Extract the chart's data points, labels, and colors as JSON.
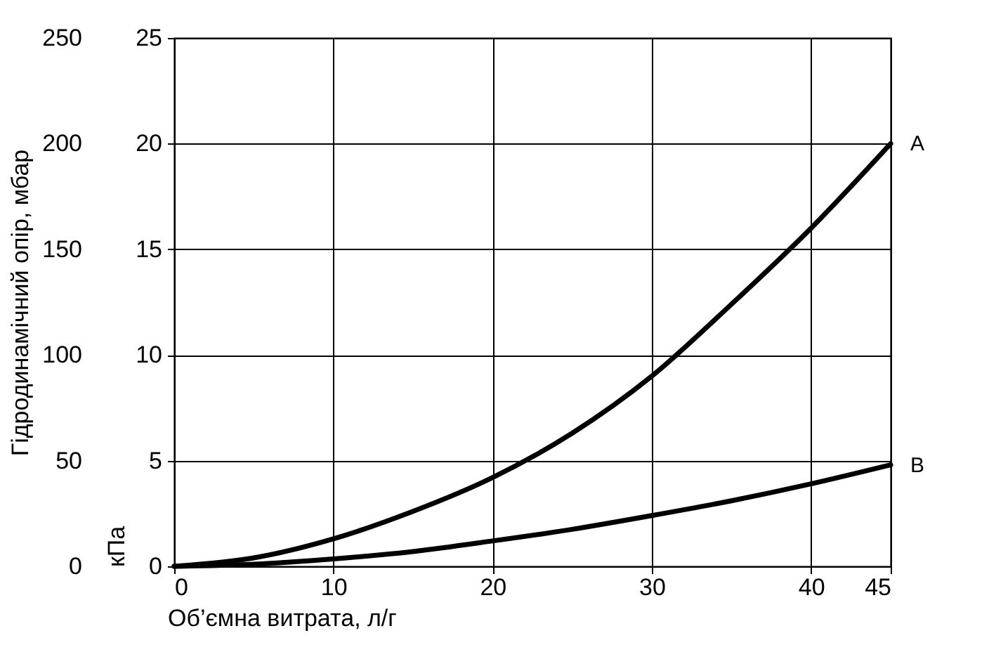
{
  "chart_data": {
    "type": "line",
    "xlabel": "Об’ємна витрата, л/г",
    "ylabel": "кПа",
    "y2label": "Гідродинамічний опір, мбар",
    "x": [
      0,
      5,
      10,
      15,
      20,
      25,
      30,
      35,
      40,
      45
    ],
    "series": [
      {
        "name": "A",
        "color": "#000000",
        "values": [
          0,
          0.4,
          1.3,
          2.6,
          4.2,
          6.3,
          9,
          12.4,
          16,
          20
        ]
      },
      {
        "name": "B",
        "color": "#000000",
        "values": [
          0,
          0.1,
          0.35,
          0.7,
          1.2,
          1.75,
          2.4,
          3.1,
          3.9,
          4.8
        ]
      }
    ],
    "xlim": [
      0,
      45
    ],
    "xticks": [
      0,
      10,
      20,
      30,
      40,
      45
    ],
    "ylim": [
      0,
      25
    ],
    "yticks": [
      0,
      5,
      10,
      15,
      20,
      25
    ],
    "y2lim": [
      0,
      250
    ],
    "y2ticks": [
      0,
      50,
      100,
      150,
      200,
      250
    ],
    "grid": true,
    "marker": "none",
    "line_style": "solid"
  }
}
